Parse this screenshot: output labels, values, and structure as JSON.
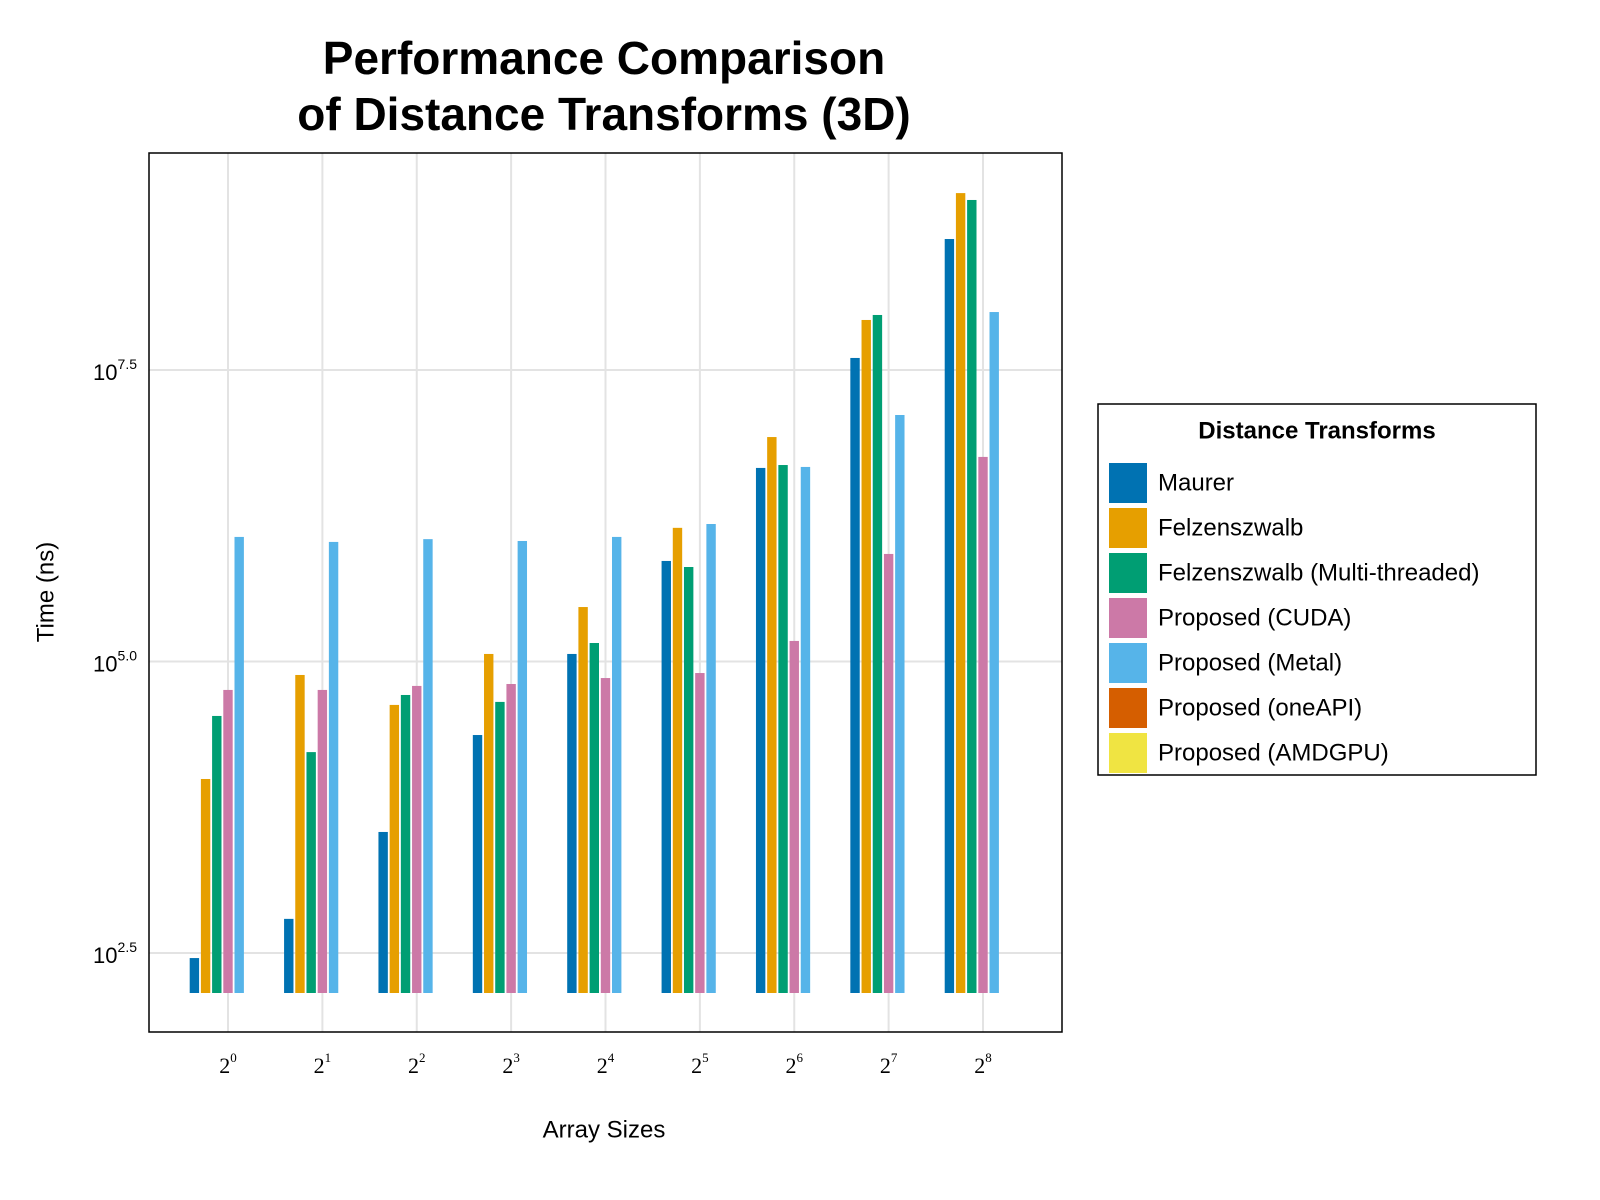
{
  "chart_data": {
    "type": "bar",
    "title": [
      "Performance Comparison",
      "of Distance Transforms (3D)"
    ],
    "x_label": "Array Sizes",
    "y_label": "Time (ns)",
    "categories": [
      "2^0",
      "2^1",
      "2^2",
      "2^3",
      "2^4",
      "2^5",
      "2^6",
      "2^7",
      "2^8"
    ],
    "log_scale_y": true,
    "grid": true,
    "ylim": [
      66.4,
      2296000000
    ],
    "yticks": [
      {
        "value": 316.23,
        "label": "10^2.5"
      },
      {
        "value": 100000,
        "label": "10^5.0"
      },
      {
        "value": 31622777,
        "label": "10^7.5"
      }
    ],
    "legend": {
      "title": "Distance Transforms",
      "position": "right"
    },
    "series": [
      {
        "name": "Maurer",
        "color": "#0072b2",
        "values": [
          286,
          620,
          3450,
          23400,
          116000,
          728000,
          4570000,
          40100000,
          420000000
        ]
      },
      {
        "name": "Felzenszwalb",
        "color": "#e69f00",
        "values": [
          9820,
          76600,
          42400,
          116000,
          293000,
          1400000,
          8410000,
          84900000,
          1040000000
        ]
      },
      {
        "name": "Felzenszwalb (Multi-threaded)",
        "color": "#009e73",
        "values": [
          34100,
          16700,
          51600,
          45000,
          144000,
          646000,
          4840000,
          93700000,
          908000000
        ]
      },
      {
        "name": "Proposed (CUDA)",
        "color": "#cc79a7",
        "values": [
          57000,
          57000,
          61700,
          64100,
          72100,
          79600,
          150000,
          836000,
          5680000
        ]
      },
      {
        "name": "Proposed (Metal)",
        "color": "#56b4e9",
        "values": [
          1170000,
          1060000,
          1120000,
          1080000,
          1170000,
          1510000,
          4660000,
          13000000,
          99300000
        ]
      },
      {
        "name": "Proposed (oneAPI)",
        "color": "#d55e00",
        "values": [
          null,
          null,
          null,
          null,
          null,
          null,
          null,
          null,
          null
        ]
      },
      {
        "name": "Proposed (AMDGPU)",
        "color": "#f0e442",
        "values": [
          null,
          null,
          null,
          null,
          null,
          null,
          null,
          null,
          null
        ]
      }
    ]
  }
}
